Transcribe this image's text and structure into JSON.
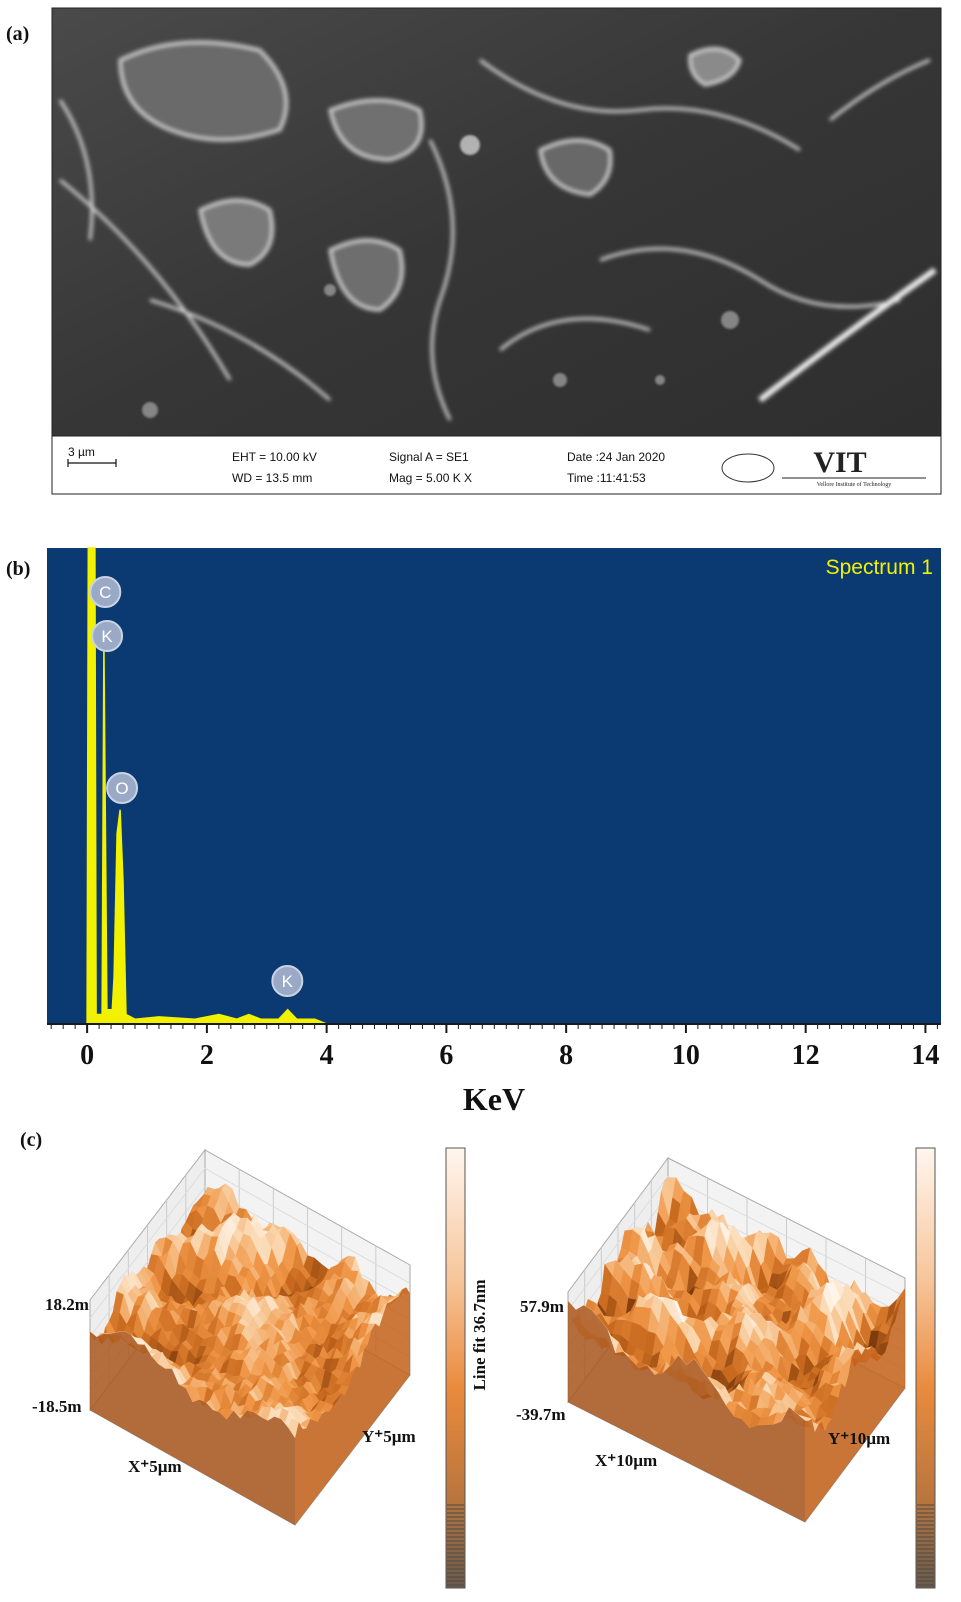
{
  "panel_a": {
    "label": "(a)",
    "scale_bar": "3 µm",
    "eht": "EHT = 10.00 kV",
    "wd": "WD = 13.5 mm",
    "signal": "Signal A = SE1",
    "mag": "Mag =    5.00 K X",
    "date": "Date :24 Jan 2020",
    "time": "Time :11:41:53",
    "logo": "VIT",
    "logo_sub": "Vellore Institute of Technology"
  },
  "chart_data": {
    "type": "area",
    "label": "(b)",
    "legend": "Spectrum 1",
    "xlabel": "KeV",
    "color": "#f2f200",
    "background": "#0b3a72",
    "x": [
      0,
      0.02,
      0.13,
      0.15,
      0.25,
      0.28,
      0.33,
      0.42,
      0.45,
      0.5,
      0.55,
      0.6,
      0.65,
      0.8,
      1.2,
      1.8,
      2.2,
      2.5,
      2.7,
      2.9,
      3.2,
      3.35,
      3.5,
      3.8,
      4.0
    ],
    "values": [
      0,
      100,
      100,
      2,
      2,
      80,
      3,
      3,
      10,
      40,
      45,
      30,
      2,
      1,
      1.5,
      1,
      2,
      1,
      2,
      1,
      1,
      3,
      1,
      1,
      0
    ],
    "xlim": [
      -0.67,
      14.26
    ],
    "ylim": [
      0,
      100
    ],
    "xticks": [
      0,
      2,
      4,
      6,
      8,
      10,
      12,
      14
    ],
    "peak_labels": [
      {
        "text": "C",
        "kev": 0.27
      },
      {
        "text": "K",
        "kev": 0.3
      },
      {
        "text": "O",
        "kev": 0.55
      },
      {
        "text": "K",
        "kev": 3.31
      }
    ]
  },
  "panel_c": {
    "label": "(c)",
    "left": {
      "z_max": "18.2m",
      "z_min": "-18.5m",
      "x_axis": "X⁺5µm",
      "y_axis": "Y⁺5µm",
      "colorbar": "Line fit 36.7nm"
    },
    "right": {
      "z_max": "57.9m",
      "z_min": "-39.7m",
      "x_axis": "X⁺10µm",
      "y_axis": "Y⁺10µm"
    }
  }
}
